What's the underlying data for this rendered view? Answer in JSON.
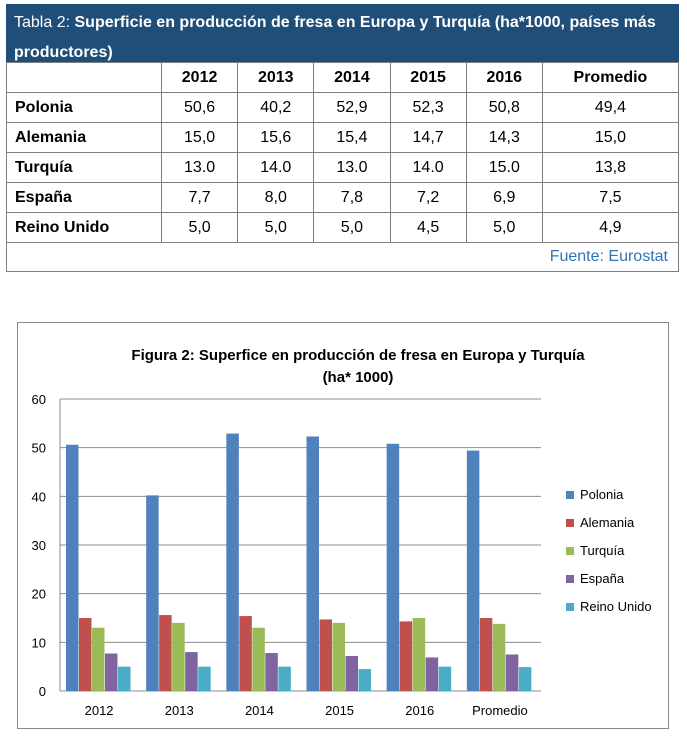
{
  "table": {
    "caption_prefix": "Tabla 2:",
    "caption_bold": "Superficie en producción de fresa en Europa y Turquía (ha*1000, países más productores)",
    "columns": [
      "2012",
      "2013",
      "2014",
      "2015",
      "2016",
      "Promedio"
    ],
    "rows": [
      {
        "label": "Polonia",
        "values": [
          "50,6",
          "40,2",
          "52,9",
          "52,3",
          "50,8",
          "49,4"
        ]
      },
      {
        "label": "Alemania",
        "values": [
          "15,0",
          "15,6",
          "15,4",
          "14,7",
          "14,3",
          "15,0"
        ]
      },
      {
        "label": "Turquía",
        "values": [
          "13.0",
          "14.0",
          "13.0",
          "14.0",
          "15.0",
          "13,8"
        ]
      },
      {
        "label": "España",
        "values": [
          "7,7",
          "8,0",
          "7,8",
          "7,2",
          "6,9",
          "7,5"
        ]
      },
      {
        "label": "Reino Unido",
        "values": [
          "5,0",
          "5,0",
          "5,0",
          "4,5",
          "5,0",
          "4,9"
        ]
      }
    ],
    "source": "Fuente: Eurostat"
  },
  "chart_data": {
    "type": "bar",
    "title_line1": "Figura 2: Superfice en producción de fresa en Europa y Turquía",
    "title_line2": "(ha* 1000)",
    "categories": [
      "2012",
      "2013",
      "2014",
      "2015",
      "2016",
      "Promedio"
    ],
    "series": [
      {
        "name": "Polonia",
        "color": "#4f81bd",
        "values": [
          50.6,
          40.2,
          52.9,
          52.3,
          50.8,
          49.4
        ]
      },
      {
        "name": "Alemania",
        "color": "#c0504d",
        "values": [
          15.0,
          15.6,
          15.4,
          14.7,
          14.3,
          15.0
        ]
      },
      {
        "name": "Turquía",
        "color": "#9bbb59",
        "values": [
          13.0,
          14.0,
          13.0,
          14.0,
          15.0,
          13.8
        ]
      },
      {
        "name": "España",
        "color": "#8064a2",
        "values": [
          7.7,
          8.0,
          7.8,
          7.2,
          6.9,
          7.5
        ]
      },
      {
        "name": "Reino Unido",
        "color": "#4bacc6",
        "values": [
          5.0,
          5.0,
          5.0,
          4.5,
          5.0,
          4.9
        ]
      }
    ],
    "ylim": [
      0,
      60
    ],
    "yticks": [
      "0",
      "10",
      "20",
      "30",
      "40",
      "50",
      "60"
    ],
    "grid": true,
    "legend_position": "right"
  }
}
